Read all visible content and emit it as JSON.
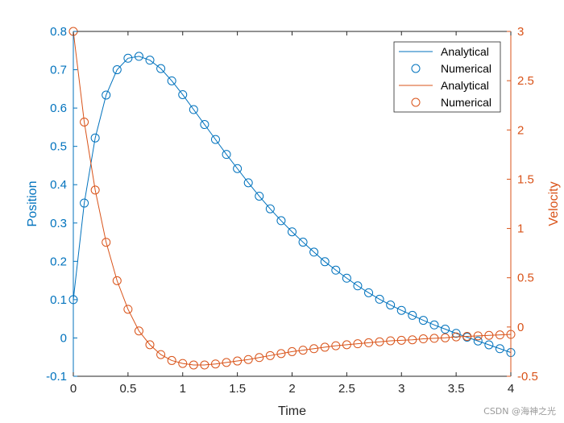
{
  "chart_data": {
    "type": "line",
    "xlabel": "Time",
    "ylabel_left": "Position",
    "ylabel_right": "Velocity",
    "xlim": [
      0,
      4
    ],
    "ylim_left": [
      -0.1,
      0.8
    ],
    "ylim_right": [
      -0.5,
      3
    ],
    "x_ticks": [
      "0",
      "0.5",
      "1",
      "1.5",
      "2",
      "2.5",
      "3",
      "3.5",
      "4"
    ],
    "y_left_ticks": [
      "-0.1",
      "0",
      "0.1",
      "0.2",
      "0.3",
      "0.4",
      "0.5",
      "0.6",
      "0.7",
      "0.8"
    ],
    "y_right_ticks": [
      "-0.5",
      "0",
      "0.5",
      "1",
      "1.5",
      "2",
      "2.5",
      "3"
    ],
    "grid": false,
    "legend_position": "top-right",
    "x": [
      0,
      0.1,
      0.2,
      0.3,
      0.4,
      0.5,
      0.6,
      0.7,
      0.8,
      0.9,
      1.0,
      1.1,
      1.2,
      1.3,
      1.4,
      1.5,
      1.6,
      1.7,
      1.8,
      1.9,
      2.0,
      2.1,
      2.2,
      2.3,
      2.4,
      2.5,
      2.6,
      2.7,
      2.8,
      2.9,
      3.0,
      3.1,
      3.2,
      3.3,
      3.4,
      3.5,
      3.6,
      3.7,
      3.8,
      3.9,
      4.0
    ],
    "series": [
      {
        "name": "Analytical",
        "axis": "left",
        "style": "line",
        "color": "#0072BD",
        "values": [
          0.1,
          0.352,
          0.522,
          0.634,
          0.7,
          0.73,
          0.735,
          0.725,
          0.703,
          0.671,
          0.635,
          0.596,
          0.557,
          0.518,
          0.479,
          0.442,
          0.405,
          0.37,
          0.337,
          0.306,
          0.277,
          0.25,
          0.224,
          0.199,
          0.177,
          0.156,
          0.136,
          0.118,
          0.101,
          0.086,
          0.072,
          0.059,
          0.046,
          0.034,
          0.023,
          0.012,
          0.002,
          -0.008,
          -0.018,
          -0.028,
          -0.038
        ]
      },
      {
        "name": "Numerical",
        "axis": "left",
        "style": "marker",
        "color": "#0072BD",
        "values": [
          0.1,
          0.352,
          0.522,
          0.634,
          0.7,
          0.73,
          0.735,
          0.725,
          0.703,
          0.671,
          0.635,
          0.596,
          0.557,
          0.518,
          0.479,
          0.442,
          0.405,
          0.37,
          0.337,
          0.306,
          0.277,
          0.25,
          0.224,
          0.199,
          0.177,
          0.156,
          0.136,
          0.118,
          0.101,
          0.086,
          0.072,
          0.059,
          0.046,
          0.034,
          0.023,
          0.012,
          0.002,
          -0.008,
          -0.018,
          -0.028,
          -0.038
        ]
      },
      {
        "name": "Analytical",
        "axis": "right",
        "style": "line",
        "color": "#D95319",
        "values": [
          3.0,
          2.08,
          1.39,
          0.86,
          0.47,
          0.18,
          -0.04,
          -0.18,
          -0.28,
          -0.34,
          -0.37,
          -0.385,
          -0.385,
          -0.375,
          -0.36,
          -0.345,
          -0.33,
          -0.31,
          -0.29,
          -0.27,
          -0.25,
          -0.235,
          -0.22,
          -0.205,
          -0.19,
          -0.18,
          -0.17,
          -0.16,
          -0.15,
          -0.14,
          -0.135,
          -0.13,
          -0.12,
          -0.115,
          -0.11,
          -0.1,
          -0.095,
          -0.09,
          -0.085,
          -0.08,
          -0.075
        ]
      },
      {
        "name": "Numerical",
        "axis": "right",
        "style": "marker",
        "color": "#D95319",
        "values": [
          3.0,
          2.08,
          1.39,
          0.86,
          0.47,
          0.18,
          -0.04,
          -0.18,
          -0.28,
          -0.34,
          -0.37,
          -0.385,
          -0.385,
          -0.375,
          -0.36,
          -0.345,
          -0.33,
          -0.31,
          -0.29,
          -0.27,
          -0.25,
          -0.235,
          -0.22,
          -0.205,
          -0.19,
          -0.18,
          -0.17,
          -0.16,
          -0.15,
          -0.14,
          -0.135,
          -0.13,
          -0.12,
          -0.115,
          -0.11,
          -0.1,
          -0.095,
          -0.09,
          -0.085,
          -0.08,
          -0.075
        ]
      }
    ],
    "legend": [
      "Analytical",
      "Numerical",
      "Analytical",
      "Numerical"
    ]
  },
  "colors": {
    "left_axis": "#0072BD",
    "right_axis": "#D95319",
    "x_axis": "#262626"
  },
  "watermark": "CSDN @海神之光"
}
